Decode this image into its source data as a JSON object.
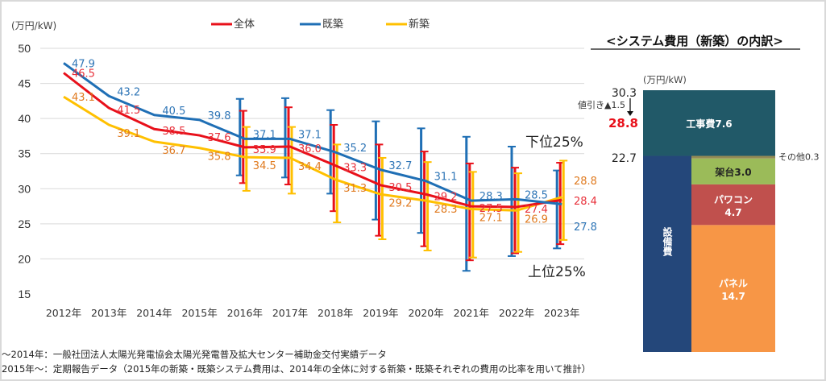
{
  "chart_data": [
    {
      "type": "line",
      "ylabel": "(万円/kW)",
      "ylim": [
        15,
        50
      ],
      "yticks": [
        15,
        20,
        25,
        30,
        35,
        40,
        45,
        50
      ],
      "grid": true,
      "legend_placement": "top",
      "categories": [
        "2012年",
        "2013年",
        "2014年",
        "2015年",
        "2016年",
        "2017年",
        "2018年",
        "2019年",
        "2020年",
        "2021年",
        "2022年",
        "2023年"
      ],
      "series": [
        {
          "name": "全体",
          "color": "#e8101a",
          "label_color": "#e8303a",
          "values": [
            46.5,
            41.5,
            38.5,
            37.6,
            35.9,
            36.0,
            33.3,
            30.5,
            29.2,
            27.5,
            27.4,
            28.4
          ],
          "error_high": [
            null,
            null,
            null,
            null,
            41.1,
            41.6,
            39.1,
            36.3,
            35.3,
            33.6,
            33.0,
            33.7
          ],
          "error_low": [
            null,
            null,
            null,
            null,
            30.8,
            30.6,
            26.8,
            23.3,
            21.8,
            19.8,
            20.8,
            22.1
          ]
        },
        {
          "name": "既築",
          "color": "#1f6fb5",
          "label_color": "#2e75b6",
          "values": [
            47.9,
            43.2,
            40.5,
            39.8,
            37.1,
            37.1,
            35.2,
            32.7,
            31.1,
            28.3,
            28.5,
            27.8
          ],
          "error_high": [
            null,
            null,
            null,
            null,
            42.8,
            42.9,
            41.2,
            39.6,
            38.6,
            37.4,
            36.0,
            32.6
          ],
          "error_low": [
            null,
            null,
            null,
            null,
            31.9,
            31.6,
            29.3,
            25.6,
            23.7,
            18.3,
            20.4,
            21.5
          ]
        },
        {
          "name": "新築",
          "color": "#ffc000",
          "label_color": "#e07b20",
          "values": [
            43.1,
            39.1,
            36.7,
            35.8,
            34.5,
            34.4,
            31.3,
            29.2,
            28.3,
            27.1,
            26.9,
            28.8
          ],
          "error_high": [
            null,
            null,
            null,
            null,
            38.8,
            38.8,
            36.3,
            34.4,
            33.8,
            32.4,
            32.2,
            34.0
          ],
          "error_low": [
            null,
            null,
            null,
            null,
            29.7,
            29.3,
            25.2,
            22.8,
            21.2,
            20.2,
            21.0,
            22.7
          ]
        }
      ],
      "annotations": {
        "upper": "下位25%",
        "lower": "上位25%"
      }
    },
    {
      "type": "bar",
      "stacked": true,
      "title": "<システム費用（新築）の内訳>",
      "unit": "(万円/kW)",
      "total_label": "30.3",
      "discount_label": "値引き▲1.5",
      "net_label": "28.8",
      "equipment_total_label": "22.7",
      "equipment_label": "設備費",
      "total": 30.3,
      "net": 28.8,
      "equipment_total": 22.7,
      "segments": [
        {
          "name": "パネル",
          "value": 14.7,
          "label": "パネル",
          "value_label": "14.7",
          "color": "#f79646"
        },
        {
          "name": "パワコン",
          "value": 4.7,
          "label": "パワコン",
          "value_label": "4.7",
          "color": "#c0504d"
        },
        {
          "name": "架台",
          "value": 3.0,
          "label": "架台3.0",
          "color": "#9bbb59"
        },
        {
          "name": "その他",
          "value": 0.3,
          "label": "その他0.3",
          "color": "#948a54"
        },
        {
          "name": "工事費",
          "value": 7.6,
          "label": "工事費7.6",
          "color": "#215968"
        }
      ],
      "equipment_color": "#24477a"
    }
  ],
  "notes": [
    "～2014年：一般社団法人太陽光発電協会太陽光発電普及拡大センター補助金交付実績データ",
    "2015年～：定期報告データ（2015年の新築・既築システム費用は、2014年の全体に対する新築・既築それぞれの費用の比率を用いて推計）"
  ]
}
